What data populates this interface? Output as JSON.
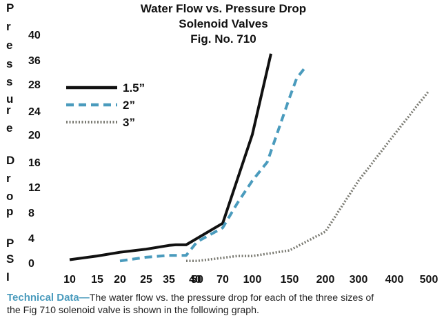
{
  "chart_data": {
    "type": "line",
    "title": "Water Flow vs. Pressure Drop",
    "subtitle": "Solenoid Valves",
    "figure": "Fig. No. 710",
    "ylabel": "Pressure Drop PSI",
    "xlabel": "",
    "x_ticks": [
      "10",
      "15",
      "20",
      "25",
      "35",
      "40",
      "50",
      "70",
      "100",
      "150",
      "200",
      "300",
      "400",
      "500"
    ],
    "y_ticks": [
      "0",
      "4",
      "8",
      "12",
      "16",
      "20",
      "24",
      "28",
      "36",
      "40"
    ],
    "ylim": [
      0,
      40
    ],
    "grid": false,
    "legend_position": "upper-left",
    "series": [
      {
        "name": "1.5”",
        "style": "solid",
        "color": "#111111",
        "x": [
          10,
          15,
          20,
          25,
          35,
          37,
          40,
          70,
          100,
          125
        ],
        "y": [
          0.5,
          1.1,
          1.7,
          2.2,
          2.8,
          2.9,
          2.9,
          6.3,
          20,
          37
        ]
      },
      {
        "name": "2”",
        "style": "dashed",
        "color": "#4a9bbd",
        "x": [
          20,
          25,
          35,
          40,
          50,
          70,
          85,
          100,
          120,
          150,
          160,
          170
        ],
        "y": [
          0.3,
          0.9,
          1.2,
          1.2,
          3.4,
          5.6,
          9.5,
          13,
          16,
          26,
          30,
          33
        ]
      },
      {
        "name": "3”",
        "style": "dotted",
        "color": "#7a7a72",
        "x": [
          40,
          50,
          70,
          85,
          100,
          150,
          200,
          250,
          300,
          400,
          500
        ],
        "y": [
          0.3,
          0.3,
          0.8,
          1.1,
          1.1,
          2.0,
          5.0,
          9.0,
          13,
          20,
          27
        ]
      }
    ]
  },
  "vertical_label": [
    "P",
    "r",
    "e",
    "s",
    "s",
    "u",
    "r",
    "e",
    "D",
    "r",
    "o",
    "p",
    "P",
    "S",
    "I"
  ],
  "technical_note": {
    "heading": "Technical Data—",
    "line1": "The water flow vs. the pressure drop for each of the three sizes of",
    "line2": "the Fig 710 solenoid valve is shown in the following graph."
  },
  "colors": {
    "accent": "#4a9bbd",
    "line_primary": "#111111",
    "line_tertiary": "#7a7a72"
  }
}
